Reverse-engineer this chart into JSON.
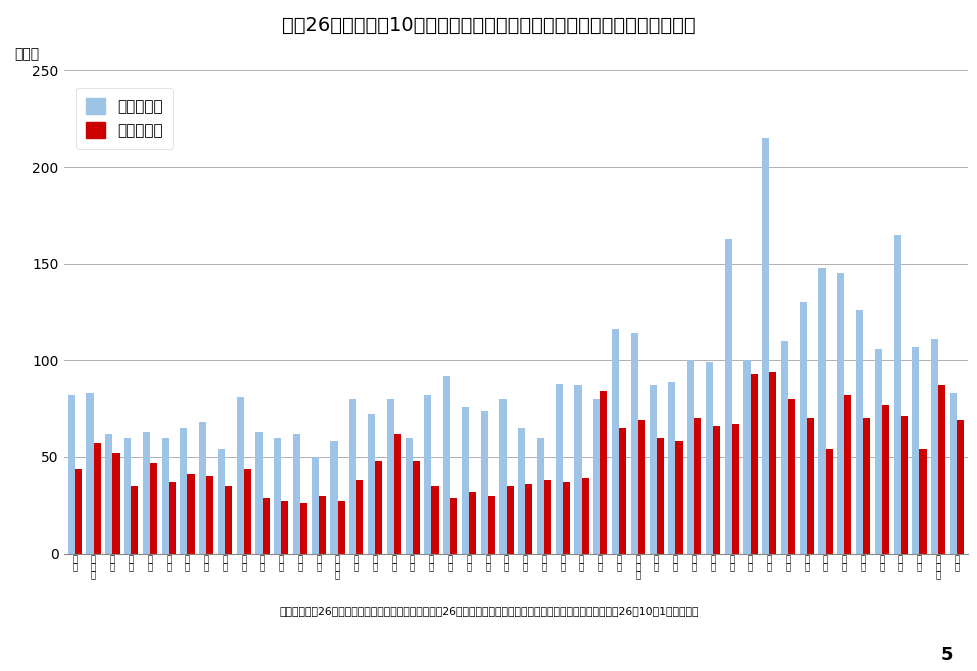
{
  "title": "平成26年度　人口10万対理学療法士・作業療法士数（常勤換算従事者数）",
  "ylabel": "（人）",
  "source_note": "出典：「平成26年医療施設調査・病院報告」、「平成26年介護サービス施設・事業所調査」、「人口推計（平成26年10月1日現在）」",
  "page_number": "5",
  "legend_pt": "理学療法士",
  "legend_ot": "作業療法士",
  "pt_color": "#9dc3e6",
  "ot_color": "#cc0000",
  "background_title": "#f5cfa4",
  "background_chart": "#ffffff",
  "ylim": [
    0,
    250
  ],
  "yticks": [
    0,
    50,
    100,
    150,
    200,
    250
  ],
  "categories": [
    "全\n国",
    "北\n海\n道",
    "青\n森",
    "岩\n手",
    "宮\n城",
    "秋\n田",
    "山\n形",
    "福\n島",
    "茨\n城",
    "栃\n木",
    "群\n馬",
    "埼\n玉",
    "千\n葉",
    "東\n京",
    "神\n奈\n川",
    "新\n潟",
    "富\n山",
    "石\n川",
    "福\n井",
    "山\n梨",
    "長\n野",
    "岐\n阜",
    "静\n岡",
    "愛\n知",
    "三\n重",
    "滋\n賀",
    "京\n都",
    "大\n阪",
    "兵\n庫",
    "奈\n良",
    "和\n歌\n山",
    "鳥\n取",
    "島\n根",
    "岡\n山",
    "広\n島",
    "山\n口",
    "徳\n島",
    "香\n川",
    "愛\n媛",
    "高\n知",
    "福\n岡",
    "佐\n賀",
    "長\n崎",
    "熊\n本",
    "大\n分",
    "宮\n崎",
    "鹿\n児\n島",
    "沖\n縄"
  ],
  "pt_values": [
    82,
    83,
    62,
    60,
    63,
    60,
    65,
    68,
    54,
    81,
    63,
    60,
    62,
    50,
    58,
    80,
    72,
    80,
    60,
    82,
    92,
    76,
    74,
    80,
    65,
    60,
    88,
    87,
    80,
    116,
    114,
    87,
    89,
    100,
    99,
    163,
    100,
    215,
    110,
    130,
    148,
    145,
    126,
    106,
    165,
    107,
    111,
    83
  ],
  "ot_values": [
    44,
    57,
    52,
    35,
    47,
    37,
    41,
    40,
    35,
    44,
    29,
    27,
    26,
    30,
    27,
    38,
    48,
    62,
    48,
    35,
    29,
    32,
    30,
    35,
    36,
    38,
    37,
    39,
    84,
    65,
    69,
    60,
    58,
    70,
    66,
    67,
    93,
    94,
    80,
    70,
    54,
    82,
    70,
    77,
    71,
    54,
    87,
    69
  ]
}
